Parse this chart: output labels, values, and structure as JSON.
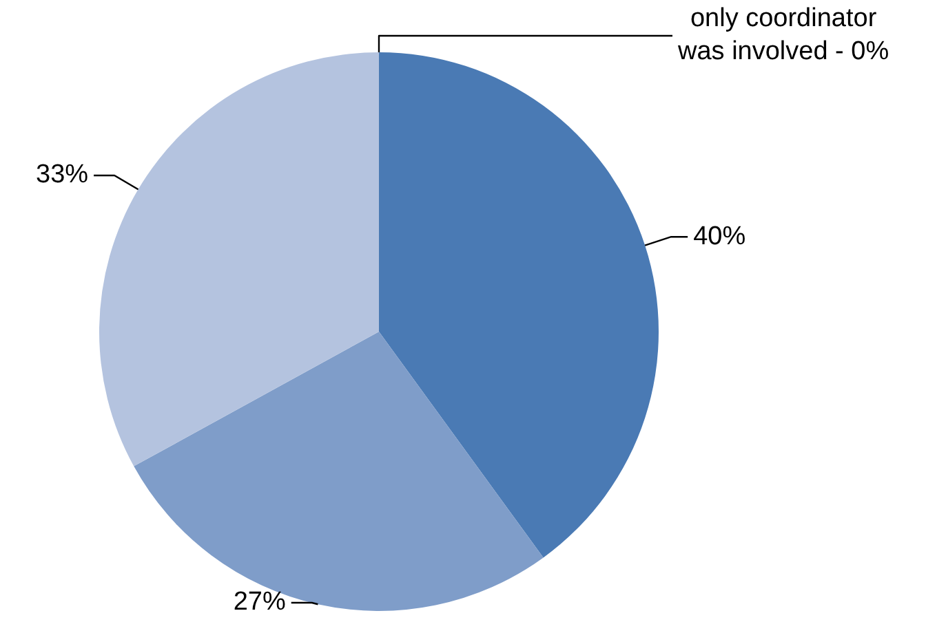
{
  "chart_data": {
    "type": "pie",
    "categories": [
      null,
      null,
      null,
      null
    ],
    "values": [
      0,
      40,
      27,
      33
    ],
    "colors": [
      "#3f6ea8",
      "#4a7ab4",
      "#7f9dc9",
      "#b4c3df"
    ],
    "value_labels": [
      "only coordinator was involved - 0%",
      "40%",
      "27%",
      "33%"
    ]
  }
}
